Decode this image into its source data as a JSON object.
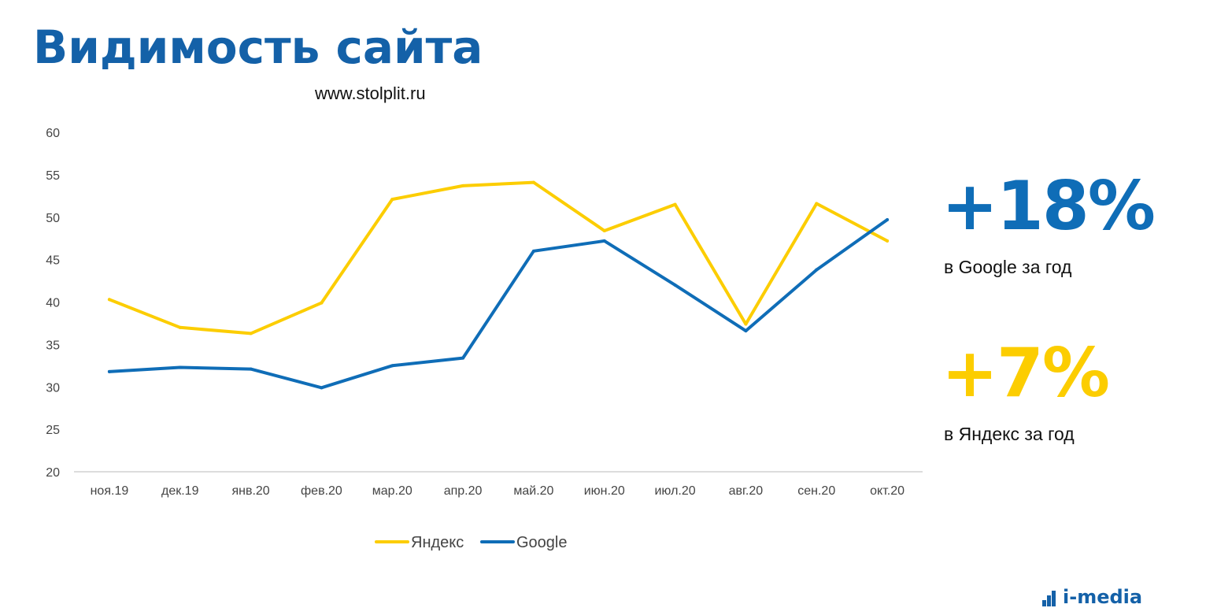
{
  "header": {
    "title": "Видимость сайта",
    "subtitle": "www.stolplit.ru"
  },
  "stats": {
    "google_value": "+18%",
    "google_caption": "в Google за год",
    "yandex_value": "+7%",
    "yandex_caption": "в Яндекс за год"
  },
  "logo": {
    "text": "i-media"
  },
  "colors": {
    "title": "#1461a8",
    "yandex": "#fccd00",
    "google": "#0f6db7"
  },
  "chart_data": {
    "type": "line",
    "categories": [
      "ноя.19",
      "дек.19",
      "янв.20",
      "фев.20",
      "мар.20",
      "апр.20",
      "май.20",
      "июн.20",
      "июл.20",
      "авг.20",
      "сен.20",
      "окт.20"
    ],
    "series": [
      {
        "name": "Яндекс",
        "color": "#fccd00",
        "values": [
          40.3,
          37.0,
          36.3,
          39.9,
          52.1,
          53.7,
          54.1,
          48.4,
          51.5,
          37.4,
          51.6,
          47.2
        ]
      },
      {
        "name": "Google",
        "color": "#0f6db7",
        "values": [
          31.8,
          32.3,
          32.1,
          29.9,
          32.5,
          33.4,
          46.0,
          47.2,
          42.0,
          36.6,
          43.8,
          49.7
        ]
      }
    ],
    "ylim": [
      20,
      60
    ],
    "yticks": [
      20,
      25,
      30,
      35,
      40,
      45,
      50,
      55,
      60
    ],
    "grid": false,
    "legend": "bottom"
  }
}
